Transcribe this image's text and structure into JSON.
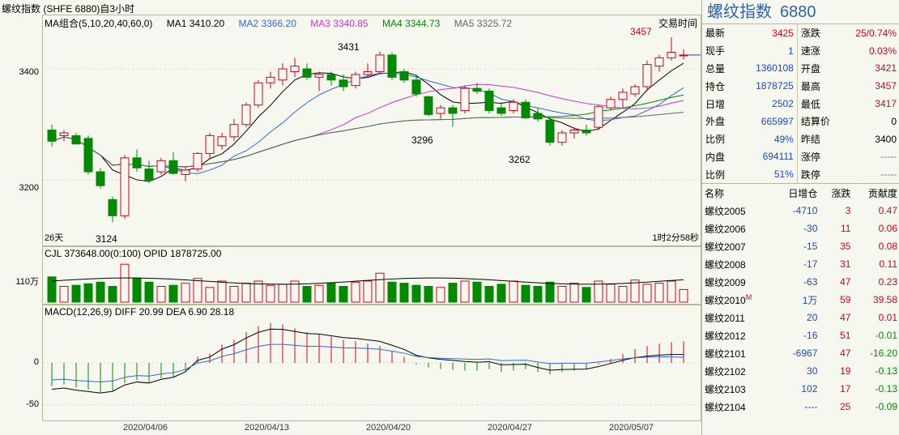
{
  "header": {
    "title": "螺纹指数 (SHFE 6880)自3小时"
  },
  "ma_legend": {
    "ma_group": "MA组合(5,10,20,40,60,0)",
    "ma1": "MA1 3410.20",
    "ma2": "MA2 3366.20",
    "ma3": "MA3 3340.85",
    "ma4": "MA4 3344.73",
    "ma5": "MA5 3325.72",
    "trade_time": "交易时间"
  },
  "price_pane": {
    "y_labels": [
      "3400",
      "3200"
    ],
    "annotations": {
      "high1": "3431",
      "high2": "3457",
      "low1": "3124",
      "low2": "3296",
      "low3": "3262"
    },
    "left_note": "26天",
    "right_note": "1时2分58秒"
  },
  "volume_pane": {
    "legend": "CJL  373648.00(0:100)   OPID 1878725.00",
    "y_label": "110万"
  },
  "macd_pane": {
    "legend": "MACD(12,26,9)  DIFF 20.99    DEA 6.90    28.18",
    "y_labels": [
      "0",
      "-50"
    ]
  },
  "x_labels": [
    "2020/04/06",
    "2020/04/13",
    "2020/04/20",
    "2020/04/27",
    "2020/05/07"
  ],
  "colors": {
    "up": "#d0021b",
    "down": "#008a00",
    "title_blue": "#2f63a6",
    "ma1": "#000000",
    "ma2": "#3366cc",
    "ma3": "#cc33cc",
    "ma4": "#008800",
    "ma5": "#666666"
  },
  "quote_panel": {
    "name": "螺纹指数",
    "code": "6880",
    "rows": [
      {
        "l1": "最新",
        "v1": "3425",
        "c1": "red",
        "l2": "涨跌",
        "v2": "25/0.74%",
        "c2": "red"
      },
      {
        "l1": "现手",
        "v1": "1",
        "c1": "blue",
        "l2": "速涨",
        "v2": "0.03%",
        "c2": "red"
      },
      {
        "l1": "总量",
        "v1": "1360108",
        "c1": "blue",
        "l2": "开盘",
        "v2": "3421",
        "c2": "red"
      },
      {
        "l1": "持仓",
        "v1": "1878725",
        "c1": "blue",
        "l2": "最高",
        "v2": "3457",
        "c2": "red"
      },
      {
        "l1": "日增",
        "v1": "2502",
        "c1": "blue",
        "l2": "最低",
        "v2": "3417",
        "c2": "red"
      },
      {
        "l1": "外盘",
        "v1": "665997",
        "c1": "blue",
        "l2": "结算价",
        "v2": "0",
        "c2": "dark"
      },
      {
        "l1": "比例",
        "v1": "49%",
        "c1": "blue",
        "l2": "昨结",
        "v2": "3400",
        "c2": "dark"
      },
      {
        "l1": "内盘",
        "v1": "694111",
        "c1": "blue",
        "l2": "涨停",
        "v2": "-----",
        "c2": "gray"
      },
      {
        "l1": "比例",
        "v1": "51%",
        "c1": "blue",
        "l2": "跌停",
        "v2": "-----",
        "c2": "gray"
      }
    ]
  },
  "contract_list": {
    "headers": [
      "名称",
      "日增仓",
      "涨跌",
      "贡献度"
    ],
    "rows": [
      {
        "name": "螺纹2005",
        "inc": "-4710",
        "chg": "3",
        "contrib": "0.47",
        "cc": "red"
      },
      {
        "name": "螺纹2006",
        "inc": "-30",
        "chg": "11",
        "contrib": "0.06",
        "cc": "red"
      },
      {
        "name": "螺纹2007",
        "inc": "-15",
        "chg": "35",
        "contrib": "0.08",
        "cc": "red"
      },
      {
        "name": "螺纹2008",
        "inc": "-17",
        "chg": "31",
        "contrib": "0.11",
        "cc": "red"
      },
      {
        "name": "螺纹2009",
        "inc": "-63",
        "chg": "47",
        "contrib": "0.23",
        "cc": "red"
      },
      {
        "name": "螺纹2010",
        "inc": "1万",
        "chg": "59",
        "contrib": "39.58",
        "cc": "red",
        "mark": "M"
      },
      {
        "name": "螺纹2011",
        "inc": "20",
        "chg": "47",
        "contrib": "0.01",
        "cc": "red"
      },
      {
        "name": "螺纹2012",
        "inc": "-16",
        "chg": "51",
        "contrib": "-0.01",
        "cc": "green"
      },
      {
        "name": "螺纹2101",
        "inc": "-6967",
        "chg": "47",
        "contrib": "-16.20",
        "cc": "green"
      },
      {
        "name": "螺纹2102",
        "inc": "30",
        "chg": "19",
        "contrib": "-0.13",
        "cc": "green"
      },
      {
        "name": "螺纹2103",
        "inc": "102",
        "chg": "17",
        "contrib": "-0.13",
        "cc": "green"
      },
      {
        "name": "螺纹2104",
        "inc": "----",
        "chg": "25",
        "contrib": "-0.09",
        "cc": "green"
      }
    ]
  },
  "chart_data": {
    "type": "candlestick",
    "ylim": [
      3100,
      3470
    ],
    "candles": [
      {
        "o": 3290,
        "h": 3300,
        "l": 3260,
        "c": 3270
      },
      {
        "o": 3280,
        "h": 3290,
        "l": 3270,
        "c": 3285
      },
      {
        "o": 3280,
        "h": 3285,
        "l": 3265,
        "c": 3265
      },
      {
        "o": 3275,
        "h": 3280,
        "l": 3210,
        "c": 3215
      },
      {
        "o": 3215,
        "h": 3222,
        "l": 3185,
        "c": 3190
      },
      {
        "o": 3165,
        "h": 3170,
        "l": 3124,
        "c": 3136
      },
      {
        "o": 3136,
        "h": 3245,
        "l": 3130,
        "c": 3240
      },
      {
        "o": 3240,
        "h": 3255,
        "l": 3215,
        "c": 3222
      },
      {
        "o": 3220,
        "h": 3235,
        "l": 3195,
        "c": 3200
      },
      {
        "o": 3215,
        "h": 3240,
        "l": 3210,
        "c": 3235
      },
      {
        "o": 3235,
        "h": 3250,
        "l": 3210,
        "c": 3212
      },
      {
        "o": 3210,
        "h": 3225,
        "l": 3198,
        "c": 3218
      },
      {
        "o": 3220,
        "h": 3250,
        "l": 3215,
        "c": 3248
      },
      {
        "o": 3248,
        "h": 3285,
        "l": 3240,
        "c": 3280
      },
      {
        "o": 3262,
        "h": 3285,
        "l": 3255,
        "c": 3278
      },
      {
        "o": 3278,
        "h": 3310,
        "l": 3270,
        "c": 3300
      },
      {
        "o": 3300,
        "h": 3340,
        "l": 3295,
        "c": 3335
      },
      {
        "o": 3335,
        "h": 3380,
        "l": 3330,
        "c": 3375
      },
      {
        "o": 3375,
        "h": 3395,
        "l": 3365,
        "c": 3385
      },
      {
        "o": 3380,
        "h": 3410,
        "l": 3370,
        "c": 3400
      },
      {
        "o": 3395,
        "h": 3420,
        "l": 3385,
        "c": 3405
      },
      {
        "o": 3400,
        "h": 3410,
        "l": 3380,
        "c": 3385
      },
      {
        "o": 3385,
        "h": 3395,
        "l": 3360,
        "c": 3390
      },
      {
        "o": 3390,
        "h": 3395,
        "l": 3370,
        "c": 3380
      },
      {
        "o": 3380,
        "h": 3390,
        "l": 3360,
        "c": 3368
      },
      {
        "o": 3370,
        "h": 3395,
        "l": 3365,
        "c": 3390
      },
      {
        "o": 3390,
        "h": 3410,
        "l": 3385,
        "c": 3395
      },
      {
        "o": 3395,
        "h": 3431,
        "l": 3390,
        "c": 3425
      },
      {
        "o": 3425,
        "h": 3430,
        "l": 3380,
        "c": 3385
      },
      {
        "o": 3395,
        "h": 3400,
        "l": 3375,
        "c": 3380
      },
      {
        "o": 3380,
        "h": 3390,
        "l": 3350,
        "c": 3355
      },
      {
        "o": 3350,
        "h": 3352,
        "l": 3315,
        "c": 3318
      },
      {
        "o": 3320,
        "h": 3335,
        "l": 3310,
        "c": 3330
      },
      {
        "o": 3330,
        "h": 3335,
        "l": 3296,
        "c": 3320
      },
      {
        "o": 3325,
        "h": 3370,
        "l": 3320,
        "c": 3365
      },
      {
        "o": 3365,
        "h": 3375,
        "l": 3355,
        "c": 3360
      },
      {
        "o": 3360,
        "h": 3365,
        "l": 3320,
        "c": 3325
      },
      {
        "o": 3330,
        "h": 3340,
        "l": 3315,
        "c": 3320
      },
      {
        "o": 3325,
        "h": 3345,
        "l": 3320,
        "c": 3340
      },
      {
        "o": 3340,
        "h": 3345,
        "l": 3310,
        "c": 3312
      },
      {
        "o": 3320,
        "h": 3330,
        "l": 3305,
        "c": 3310
      },
      {
        "o": 3308,
        "h": 3312,
        "l": 3262,
        "c": 3268
      },
      {
        "o": 3268,
        "h": 3290,
        "l": 3262,
        "c": 3285
      },
      {
        "o": 3285,
        "h": 3295,
        "l": 3275,
        "c": 3290
      },
      {
        "o": 3290,
        "h": 3300,
        "l": 3280,
        "c": 3285
      },
      {
        "o": 3295,
        "h": 3335,
        "l": 3290,
        "c": 3332
      },
      {
        "o": 3330,
        "h": 3350,
        "l": 3325,
        "c": 3345
      },
      {
        "o": 3345,
        "h": 3365,
        "l": 3330,
        "c": 3358
      },
      {
        "o": 3355,
        "h": 3372,
        "l": 3350,
        "c": 3368
      },
      {
        "o": 3368,
        "h": 3415,
        "l": 3360,
        "c": 3408
      },
      {
        "o": 3405,
        "h": 3425,
        "l": 3395,
        "c": 3420
      },
      {
        "o": 3420,
        "h": 3457,
        "l": 3415,
        "c": 3430
      },
      {
        "o": 3425,
        "h": 3435,
        "l": 3417,
        "c": 3425
      }
    ],
    "volume": [
      48,
      30,
      32,
      35,
      38,
      30,
      72,
      45,
      38,
      30,
      32,
      36,
      45,
      28,
      40,
      30,
      36,
      40,
      32,
      34,
      40,
      30,
      32,
      36,
      30,
      38,
      40,
      55,
      38,
      36,
      32,
      30,
      28,
      36,
      40,
      38,
      30,
      34,
      40,
      32,
      30,
      38,
      30,
      36,
      28,
      40,
      34,
      30,
      42,
      34,
      36,
      40,
      24
    ],
    "macd_hist": [
      -30,
      -28,
      -32,
      -35,
      -38,
      -36,
      -26,
      -22,
      -25,
      -20,
      -18,
      -10,
      8,
      12,
      24,
      30,
      40,
      48,
      52,
      50,
      45,
      40,
      38,
      34,
      30,
      28,
      25,
      22,
      15,
      8,
      -2,
      -6,
      -8,
      -9,
      -10,
      -10,
      -8,
      -12,
      -10,
      -8,
      -12,
      -15,
      -12,
      -10,
      -8,
      -2,
      5,
      12,
      18,
      22,
      25,
      27,
      28
    ]
  }
}
